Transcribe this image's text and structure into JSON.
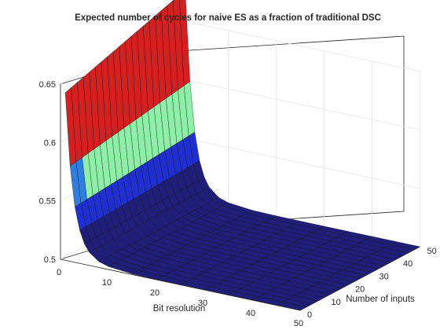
{
  "chart_data": {
    "type": "surface",
    "title": "Expected number of cycles for naive ES as a fraction of traditional DSC",
    "xlabel": "Bit resolution",
    "ylabel": "Number of inputs",
    "zlabel": "",
    "xlim": [
      0,
      50
    ],
    "ylim": [
      0,
      50
    ],
    "zlim": [
      0.5,
      0.65
    ],
    "xticks": [
      "0",
      "10",
      "20",
      "30",
      "40",
      "50"
    ],
    "yticks": [
      "0",
      "10",
      "20",
      "30",
      "40",
      "50"
    ],
    "zticks": [
      "0.5",
      "0.55",
      "0.6",
      "0.65"
    ],
    "grid": true,
    "colormap_bands": [
      {
        "zmin": 0.5,
        "zmax": 0.533,
        "color": "#1f1f7a"
      },
      {
        "zmin": 0.533,
        "zmax": 0.55,
        "color": "#1f2fd0"
      },
      {
        "zmin": 0.55,
        "zmax": 0.566,
        "color": "#2f7fe0"
      },
      {
        "zmin": 0.566,
        "zmax": 0.6,
        "color": "#8ef0a8"
      },
      {
        "zmin": 0.6,
        "zmax": 0.68,
        "color": "#d42020"
      }
    ],
    "x": [
      1,
      2,
      3,
      4,
      5,
      6,
      8,
      10,
      15,
      20,
      25,
      30,
      35,
      40,
      45,
      50
    ],
    "z_bit_resolution_1": 0.642,
    "z_bit_resolution_2": 0.64,
    "z_bit_resolution_50": 0.5,
    "z_number_of_inputs_0": 0.63,
    "z_number_of_inputs_50": 0.665,
    "z_large": 0.5
  }
}
